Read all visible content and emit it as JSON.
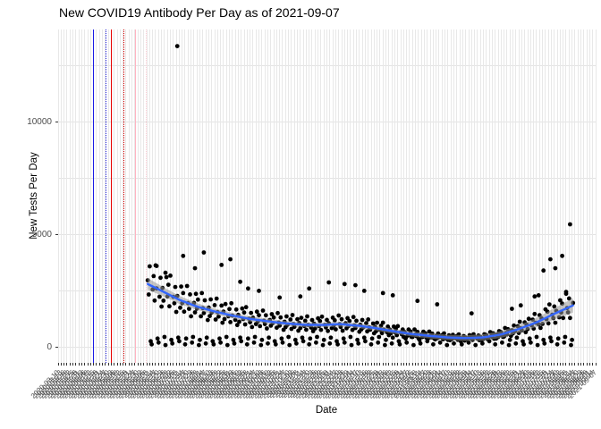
{
  "title": "New COVID19 Antibody Per Day as of 2021-09-07",
  "chart_data": {
    "type": "scatter",
    "title": "New COVID19 Antibody Per Day as of 2021-09-07",
    "xlabel": "Date",
    "ylabel": "New Tests Per Day",
    "x_axis": {
      "start_date": "2020-03-10",
      "end_date": "2021-09-07",
      "span_days": 546,
      "tick_every_days": 3,
      "tick_label_format": "YYYY-MM-DD"
    },
    "y_axis": {
      "major_ticks": [
        0,
        5000,
        10000
      ],
      "minor_ticks": [
        2500,
        7500,
        12500
      ],
      "range": [
        -700,
        14100
      ],
      "grid": "on"
    },
    "legend": "none",
    "smoother": {
      "note": "loess trend with confidence band; control points are [day_index_from_start_date, value, band_half_width]",
      "trend": [
        [
          91,
          2800,
          260
        ],
        [
          105,
          2500,
          210
        ],
        [
          123,
          2100,
          180
        ],
        [
          141,
          1800,
          150
        ],
        [
          159,
          1580,
          130
        ],
        [
          177,
          1400,
          120
        ],
        [
          195,
          1250,
          115
        ],
        [
          214,
          1140,
          110
        ],
        [
          232,
          1050,
          105
        ],
        [
          250,
          990,
          105
        ],
        [
          268,
          980,
          105
        ],
        [
          286,
          1020,
          105
        ],
        [
          305,
          950,
          105
        ],
        [
          323,
          840,
          105
        ],
        [
          341,
          700,
          105
        ],
        [
          359,
          580,
          110
        ],
        [
          377,
          500,
          115
        ],
        [
          395,
          430,
          120
        ],
        [
          414,
          400,
          130
        ],
        [
          432,
          430,
          140
        ],
        [
          450,
          560,
          150
        ],
        [
          468,
          800,
          170
        ],
        [
          486,
          1100,
          200
        ],
        [
          505,
          1500,
          250
        ],
        [
          523,
          1850,
          320
        ]
      ]
    },
    "scatter_gen": {
      "note": "daily points: weekdays scatter around trend, two low days per week (weekend reporting lows)",
      "day_range": [
        91,
        523
      ],
      "low_dows": [
        3,
        4
      ],
      "weekday_noise_cycle": [
        1.06,
        0.84,
        1.3,
        0.95,
        1.18,
        0.78,
        1.38,
        1.0,
        0.88,
        1.22,
        0.72
      ],
      "low_value_cycle": [
        260,
        120,
        380,
        200,
        450,
        90,
        320,
        160,
        420
      ]
    },
    "extra_points": [
      [
        121,
        13360
      ],
      [
        100,
        3600
      ],
      [
        109,
        3300
      ],
      [
        127,
        4050
      ],
      [
        139,
        3500
      ],
      [
        148,
        4200
      ],
      [
        166,
        3650
      ],
      [
        175,
        3900
      ],
      [
        185,
        2900
      ],
      [
        193,
        2600
      ],
      [
        204,
        2500
      ],
      [
        225,
        2200
      ],
      [
        246,
        2250
      ],
      [
        255,
        2600
      ],
      [
        275,
        2870
      ],
      [
        291,
        2800
      ],
      [
        302,
        2750
      ],
      [
        311,
        2500
      ],
      [
        330,
        2400
      ],
      [
        340,
        2300
      ],
      [
        365,
        2050
      ],
      [
        385,
        1900
      ],
      [
        420,
        1500
      ],
      [
        461,
        1700
      ],
      [
        470,
        1850
      ],
      [
        484,
        2250
      ],
      [
        488,
        2300
      ],
      [
        493,
        3400
      ],
      [
        500,
        3900
      ],
      [
        505,
        3500
      ],
      [
        512,
        4050
      ],
      [
        516,
        2450
      ],
      [
        520,
        5450
      ]
    ],
    "vlines": [
      {
        "day": 35,
        "color": "#1a1ae6",
        "style": "solid"
      },
      {
        "day": 48,
        "color": "#2222dd",
        "style": "dotted"
      },
      {
        "day": 54,
        "color": "#e60000",
        "style": "solid"
      },
      {
        "day": 66,
        "color": "#d40000",
        "style": "dotted"
      },
      {
        "day": 78,
        "color": "#ffb3c1",
        "style": "solid"
      },
      {
        "day": 89,
        "color": "#ffccd5",
        "style": "dotted"
      }
    ],
    "colors": {
      "point": "#000000",
      "smooth_line": "#3366FF",
      "smooth_band": "rgba(150,150,150,0.55)",
      "grid": "#e6e6e6",
      "tick_text": "#4d4d4d"
    }
  }
}
